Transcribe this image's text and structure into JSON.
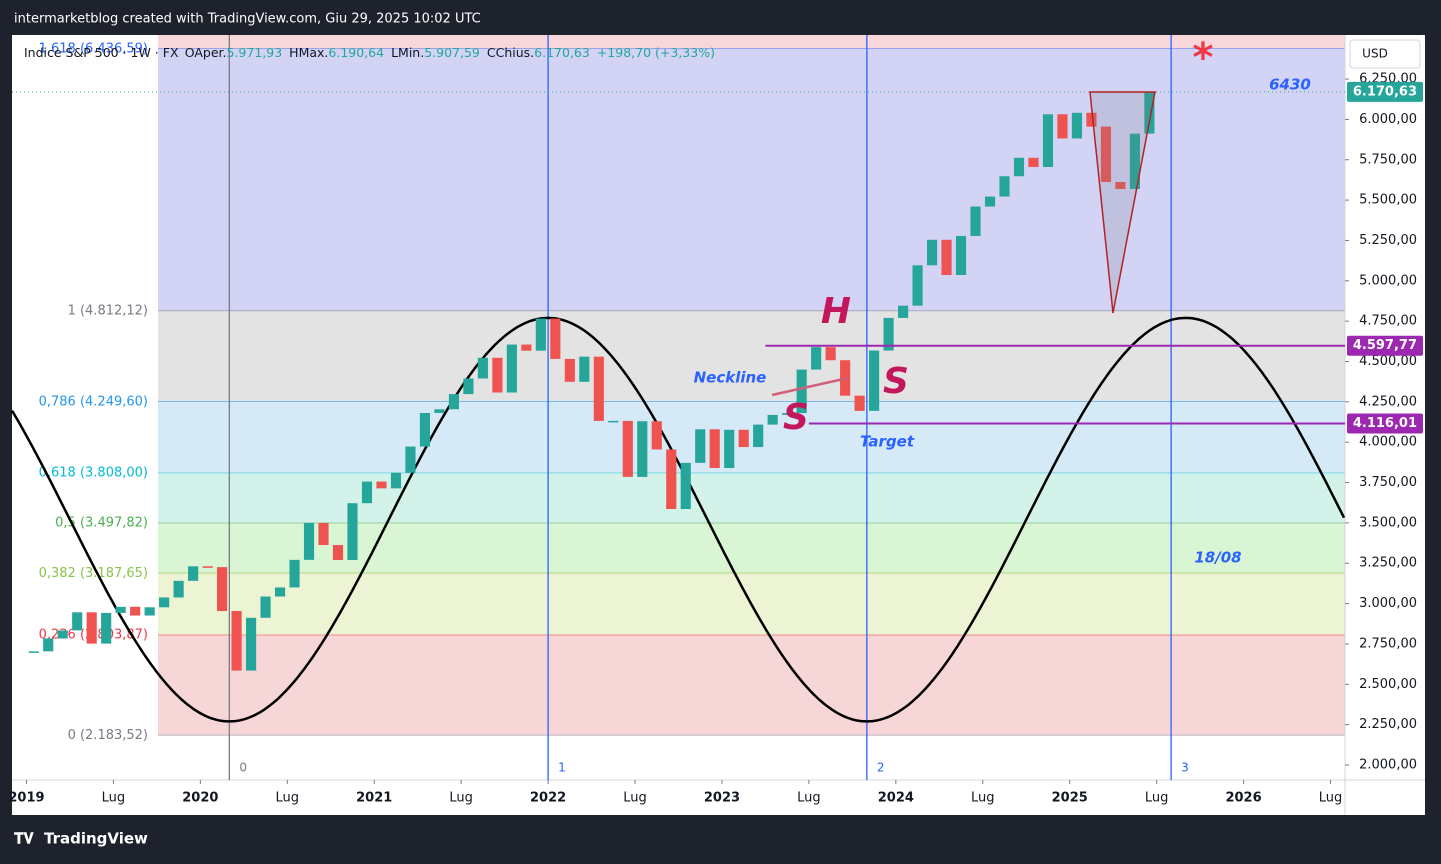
{
  "header": "intermarketblog created with TradingView.com, Giu 29, 2025 10:02 UTC",
  "footer": "TradingView",
  "chart_data": {
    "type": "candlestick",
    "legend": {
      "symbol": "Indice S&P 500 · 1W · FX",
      "o": "O",
      "open_name": "Aper.",
      "open": {
        "value": 5971.93,
        "label": "5.971,93"
      },
      "h": "H",
      "high_name": "Max.",
      "high": {
        "value": 6190.64,
        "label": "6.190,64"
      },
      "l": "L",
      "low_name": "Min.",
      "low": {
        "value": 5907.59,
        "label": "5.907,59"
      },
      "c": "C",
      "close_name": "Chius.",
      "close": {
        "value": 6170.63,
        "label": "6.170,63"
      },
      "change": "+198,70 (+3,33%)"
    },
    "currency": "USD",
    "x": [
      "2019-01",
      "2019-02",
      "2019-03",
      "2019-04",
      "2019-05",
      "2019-06",
      "2019-07",
      "2019-08",
      "2019-09",
      "2019-10",
      "2019-11",
      "2019-12",
      "2020-01",
      "2020-02",
      "2020-03",
      "2020-04",
      "2020-05",
      "2020-06",
      "2020-07",
      "2020-08",
      "2020-09",
      "2020-10",
      "2020-11",
      "2020-12",
      "2021-01",
      "2021-02",
      "2021-03",
      "2021-04",
      "2021-05",
      "2021-06",
      "2021-07",
      "2021-08",
      "2021-09",
      "2021-10",
      "2021-11",
      "2021-12",
      "2022-01",
      "2022-02",
      "2022-03",
      "2022-04",
      "2022-05",
      "2022-06",
      "2022-07",
      "2022-08",
      "2022-09",
      "2022-10",
      "2022-11",
      "2022-12",
      "2023-01",
      "2023-02",
      "2023-03",
      "2023-04",
      "2023-05",
      "2023-06",
      "2023-07",
      "2023-08",
      "2023-09",
      "2023-10",
      "2023-11",
      "2023-12",
      "2024-01",
      "2024-02",
      "2024-03",
      "2024-04",
      "2024-05",
      "2024-06",
      "2024-07",
      "2024-08",
      "2024-09",
      "2024-10",
      "2024-11",
      "2024-12",
      "2025-01",
      "2025-02",
      "2025-03",
      "2025-04",
      "2025-05",
      "2025-06"
    ],
    "series": [
      {
        "name": "Indice S&P 500",
        "up_color": "#26a69a",
        "down_color": "#ef5350",
        "values": [
          2704,
          2784,
          2834,
          2946,
          2752,
          2942,
          2980,
          2926,
          2977,
          3038,
          3141,
          3231,
          3226,
          2954,
          2585,
          2912,
          3044,
          3100,
          3271,
          3500,
          3363,
          3270,
          3622,
          3756,
          3714,
          3811,
          3973,
          4181,
          4204,
          4298,
          4395,
          4523,
          4308,
          4605,
          4567,
          4766,
          4516,
          4374,
          4530,
          4132,
          4132,
          3785,
          4130,
          3955,
          3586,
          3872,
          4080,
          3840,
          4077,
          3970,
          4109,
          4169,
          4180,
          4450,
          4589,
          4508,
          4288,
          4194,
          4568,
          4770,
          4846,
          5096,
          5254,
          5036,
          5278,
          5460,
          5522,
          5648,
          5762,
          5705,
          6032,
          5882,
          6041,
          5955,
          5612,
          5569,
          5912,
          6171
        ]
      }
    ],
    "xlim": [
      "2018-12",
      "2026-08"
    ],
    "xticks": [
      {
        "value": "2019-01",
        "label": "2019"
      },
      {
        "value": "2019-07",
        "label": "Lug"
      },
      {
        "value": "2020-01",
        "label": "2020"
      },
      {
        "value": "2020-07",
        "label": "Lug"
      },
      {
        "value": "2021-01",
        "label": "2021"
      },
      {
        "value": "2021-07",
        "label": "Lug"
      },
      {
        "value": "2022-01",
        "label": "2022"
      },
      {
        "value": "2022-07",
        "label": "Lug"
      },
      {
        "value": "2023-01",
        "label": "2023"
      },
      {
        "value": "2023-07",
        "label": "Lug"
      },
      {
        "value": "2024-01",
        "label": "2024"
      },
      {
        "value": "2024-07",
        "label": "Lug"
      },
      {
        "value": "2025-01",
        "label": "2025"
      },
      {
        "value": "2025-07",
        "label": "Lug"
      },
      {
        "value": "2026-01",
        "label": "2026"
      },
      {
        "value": "2026-07",
        "label": "Lug"
      }
    ],
    "ylim": [
      1907,
      6523
    ],
    "yticks": [
      {
        "value": 2000,
        "label": "2.000,00"
      },
      {
        "value": 2250,
        "label": "2.250,00"
      },
      {
        "value": 2500,
        "label": "2.500,00"
      },
      {
        "value": 2750,
        "label": "2.750,00"
      },
      {
        "value": 3000,
        "label": "3.000,00"
      },
      {
        "value": 3250,
        "label": "3.250,00"
      },
      {
        "value": 3500,
        "label": "3.500,00"
      },
      {
        "value": 3750,
        "label": "3.750,00"
      },
      {
        "value": 4000,
        "label": "4.000,00"
      },
      {
        "value": 4250,
        "label": "4.250,00"
      },
      {
        "value": 4500,
        "label": "4.500,00"
      },
      {
        "value": 4750,
        "label": "4.750,00"
      },
      {
        "value": 5000,
        "label": "5.000,00"
      },
      {
        "value": 5250,
        "label": "5.250,00"
      },
      {
        "value": 5500,
        "label": "5.500,00"
      },
      {
        "value": 5750,
        "label": "5.750,00"
      },
      {
        "value": 6000,
        "label": "6.000,00"
      },
      {
        "value": 6250,
        "label": "6.250,00"
      }
    ],
    "fib_levels": [
      {
        "value": 6436.59,
        "label": "1,618 (6.436,59)",
        "color": "#2962ff",
        "fill": "#f8d7da"
      },
      {
        "value": 4812.12,
        "label": "1 (4.812,12)",
        "color": "#787b86",
        "fill": "#d3d3f5"
      },
      {
        "value": 4249.6,
        "label": "0,786 (4.249,60)",
        "color": "#2196f3",
        "fill": "#e3e3e3"
      },
      {
        "value": 3808.0,
        "label": "0,618 (3.808,00)",
        "color": "#00bcd4",
        "fill": "#d6e9f7"
      },
      {
        "value": 3497.82,
        "label": "0,5 (3.497,82)",
        "color": "#4caf50",
        "fill": "#d3f3ea"
      },
      {
        "value": 3187.65,
        "label": "0,382 (3.187,65)",
        "color": "#8bc34a",
        "fill": "#d9f5d3"
      },
      {
        "value": 2803.87,
        "label": "0,236 (2.803,87)",
        "color": "#f23645",
        "fill": "#ecf4d3"
      },
      {
        "value": 2183.52,
        "label": "0 (2.183,52)",
        "color": "#787b86",
        "fill": "#f6d6d6"
      }
    ],
    "last_price": {
      "value": 6170.63,
      "label": "6.170,63",
      "color": "#26a69a"
    },
    "price_lines": [
      {
        "value": 4597.77,
        "label": "4.597,77",
        "color": "#9c27b0",
        "from": "2023-04"
      },
      {
        "value": 4116.01,
        "label": "4.116,01",
        "color": "#9c27b0",
        "from": "2023-07"
      }
    ],
    "cycle_lines": [
      {
        "x": "2020-03",
        "label": "0",
        "color": "#787b86"
      },
      {
        "x": "2022-01",
        "label": "1",
        "color": "#2962ff"
      },
      {
        "x": "2023-11",
        "label": "2",
        "color": "#2962ff"
      },
      {
        "x": "2025-08",
        "label": "3",
        "color": "#2962ff"
      }
    ],
    "cycle": {
      "low": 2270,
      "high": 4770
    },
    "annotations": {
      "h": "H",
      "s1": "S",
      "s2": "S",
      "neckline": "Neckline",
      "target": "Target",
      "level": "6430",
      "date": "18/08",
      "star": "*"
    }
  }
}
